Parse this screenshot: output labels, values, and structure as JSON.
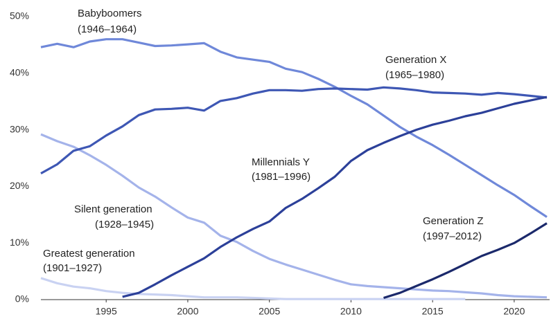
{
  "chart_data": {
    "type": "line",
    "x": [
      1991,
      1992,
      1993,
      1994,
      1995,
      1996,
      1997,
      1998,
      1999,
      2000,
      2001,
      2002,
      2003,
      2004,
      2005,
      2006,
      2007,
      2008,
      2009,
      2010,
      2011,
      2012,
      2013,
      2014,
      2015,
      2016,
      2017,
      2018,
      2019,
      2020,
      2021,
      2022
    ],
    "xlim": [
      1991,
      2022
    ],
    "xticks": [
      1995,
      2000,
      2005,
      2010,
      2015,
      2020
    ],
    "ylim": [
      0,
      50
    ],
    "yticks": [
      {
        "value": 0,
        "label": "0%"
      },
      {
        "value": 10,
        "label": "10%"
      },
      {
        "value": 20,
        "label": "20%"
      },
      {
        "value": 30,
        "label": "30%"
      },
      {
        "value": 40,
        "label": "40%"
      },
      {
        "value": 50,
        "label": "50%"
      }
    ],
    "grid": false,
    "series": [
      {
        "name": "Greatest generation",
        "years": "(1901–1927)",
        "color": "#c9d2f2",
        "values": [
          3.8,
          2.9,
          2.3,
          2.0,
          1.5,
          1.2,
          1.0,
          0.9,
          0.8,
          0.6,
          0.4,
          0.4,
          0.4,
          0.3,
          0.2,
          0.1,
          0.1,
          0.1,
          0.1,
          0.1,
          0.1,
          0.1,
          0.1,
          0.1,
          0.1,
          0.1,
          0.1,
          null,
          null,
          null,
          null,
          null
        ]
      },
      {
        "name": "Silent generation",
        "years": "(1928–1945)",
        "color": "#a4b3ea",
        "values": [
          29.2,
          28.0,
          27.0,
          25.5,
          23.8,
          21.9,
          19.8,
          18.2,
          16.3,
          14.5,
          13.6,
          11.3,
          10.2,
          8.6,
          7.2,
          6.2,
          5.3,
          4.4,
          3.5,
          2.7,
          2.4,
          2.2,
          2.0,
          1.8,
          1.6,
          1.5,
          1.3,
          1.1,
          0.8,
          0.6,
          0.5,
          0.4
        ]
      },
      {
        "name": "Babyboomers",
        "years": "(1946–1964)",
        "color": "#6f88d9",
        "values": [
          44.6,
          45.2,
          44.6,
          45.6,
          46.0,
          46.0,
          45.4,
          44.8,
          44.9,
          45.1,
          45.3,
          43.8,
          42.8,
          42.4,
          42.0,
          40.8,
          40.2,
          39.0,
          37.6,
          36.0,
          34.5,
          32.5,
          30.5,
          28.8,
          27.3,
          25.6,
          23.8,
          22.0,
          20.2,
          18.5,
          16.5,
          14.6
        ]
      },
      {
        "name": "Generation X",
        "years": "(1965–1980)",
        "color": "#3e57b4",
        "values": [
          22.3,
          23.9,
          26.3,
          27.1,
          29.0,
          30.6,
          32.6,
          33.6,
          33.7,
          33.9,
          33.4,
          35.1,
          35.6,
          36.4,
          37.0,
          37.0,
          36.9,
          37.2,
          37.3,
          37.2,
          37.1,
          37.5,
          37.3,
          37.0,
          36.6,
          36.5,
          36.4,
          36.2,
          36.5,
          36.3,
          36.0,
          35.7
        ]
      },
      {
        "name": "Millennials  Y",
        "years": "(1981–1996)",
        "color": "#2c4099",
        "values": [
          null,
          null,
          null,
          null,
          null,
          0.5,
          1.2,
          2.7,
          4.3,
          5.8,
          7.3,
          9.3,
          11.0,
          12.5,
          13.8,
          16.2,
          17.8,
          19.7,
          21.7,
          24.5,
          26.4,
          27.7,
          28.9,
          30.0,
          30.9,
          31.6,
          32.4,
          33.0,
          33.8,
          34.6,
          35.2,
          35.8
        ]
      },
      {
        "name": "Generation Z",
        "years": "(1997–2012)",
        "color": "#1b296b",
        "values": [
          null,
          null,
          null,
          null,
          null,
          null,
          null,
          null,
          null,
          null,
          null,
          null,
          null,
          null,
          null,
          null,
          null,
          null,
          null,
          null,
          null,
          0.3,
          1.2,
          2.4,
          3.6,
          4.9,
          6.3,
          7.7,
          8.8,
          10.0,
          11.7,
          13.5
        ]
      }
    ]
  }
}
